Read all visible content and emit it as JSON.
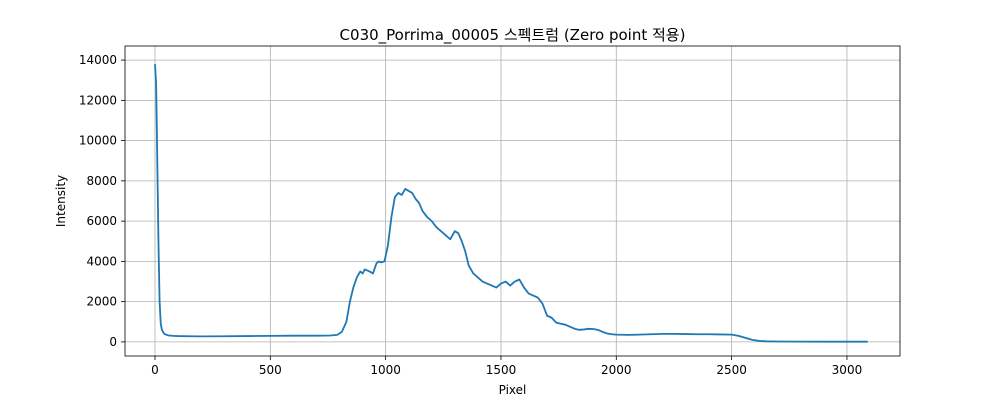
{
  "chart_data": {
    "type": "line",
    "title": "C030_Porrima_00005 스펙트럼 (Zero point 적용)",
    "xlabel": "Pixel",
    "ylabel": "Intensity",
    "xlim": [
      -130,
      3230
    ],
    "ylim": [
      -700,
      14700
    ],
    "xticks": [
      0,
      500,
      1000,
      1500,
      2000,
      2500,
      3000
    ],
    "yticks": [
      0,
      2000,
      4000,
      6000,
      8000,
      10000,
      12000,
      14000
    ],
    "grid": true,
    "line_color": "#1f77b4",
    "series": [
      {
        "x": [
          0,
          5,
          10,
          15,
          20,
          25,
          30,
          40,
          50,
          60,
          80,
          100,
          150,
          200,
          300,
          400,
          500,
          600,
          700,
          760,
          790,
          810,
          830,
          845,
          860,
          875,
          890,
          900,
          910,
          920,
          930,
          945,
          960,
          970,
          980,
          995,
          1010,
          1025,
          1040,
          1055,
          1070,
          1085,
          1100,
          1115,
          1130,
          1145,
          1160,
          1180,
          1200,
          1220,
          1240,
          1260,
          1280,
          1300,
          1315,
          1330,
          1345,
          1360,
          1380,
          1400,
          1420,
          1440,
          1460,
          1480,
          1500,
          1520,
          1540,
          1560,
          1580,
          1600,
          1620,
          1640,
          1660,
          1680,
          1700,
          1720,
          1740,
          1760,
          1780,
          1800,
          1820,
          1840,
          1860,
          1880,
          1900,
          1920,
          1940,
          1960,
          1980,
          2000,
          2050,
          2100,
          2150,
          2200,
          2250,
          2300,
          2350,
          2400,
          2450,
          2500,
          2530,
          2560,
          2590,
          2620,
          2650,
          2700,
          2800,
          2900,
          3000,
          3090
        ],
        "y": [
          13800,
          12800,
          9000,
          5000,
          2000,
          900,
          600,
          400,
          350,
          320,
          300,
          290,
          280,
          275,
          280,
          290,
          300,
          310,
          310,
          320,
          350,
          500,
          1000,
          2000,
          2700,
          3200,
          3500,
          3400,
          3600,
          3550,
          3500,
          3400,
          3900,
          4000,
          3950,
          4000,
          4800,
          6200,
          7200,
          7400,
          7300,
          7600,
          7500,
          7400,
          7100,
          6900,
          6500,
          6200,
          6000,
          5700,
          5500,
          5300,
          5100,
          5500,
          5400,
          5000,
          4500,
          3800,
          3400,
          3200,
          3000,
          2900,
          2800,
          2700,
          2900,
          3000,
          2800,
          3000,
          3100,
          2700,
          2400,
          2300,
          2200,
          1900,
          1300,
          1200,
          950,
          900,
          850,
          750,
          650,
          600,
          620,
          650,
          640,
          600,
          500,
          420,
          380,
          360,
          350,
          360,
          380,
          400,
          400,
          390,
          380,
          380,
          370,
          360,
          300,
          200,
          100,
          50,
          30,
          20,
          15,
          10,
          10,
          10
        ]
      }
    ]
  }
}
